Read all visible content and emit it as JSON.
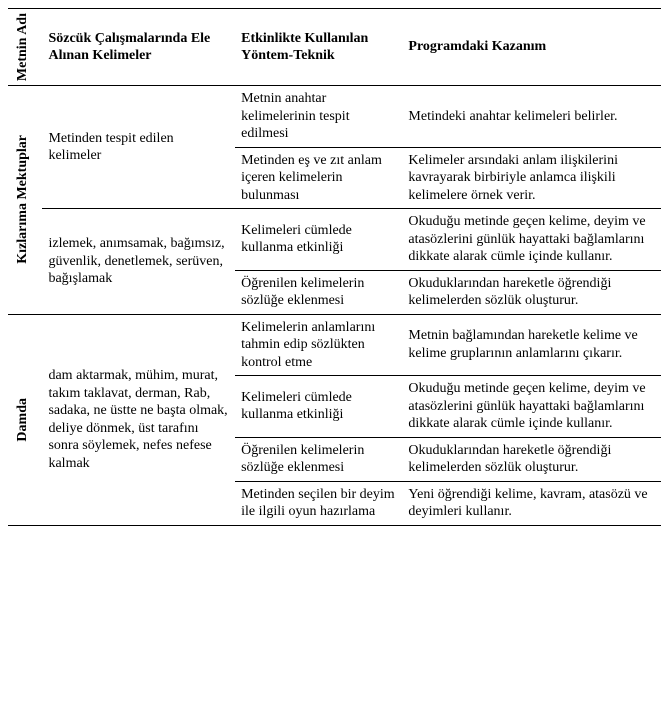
{
  "header": {
    "col1": "Metnin Adı",
    "col2": "Sözcük Çalışmalarında Ele Alınan Kelimeler",
    "col3": "Etkinlikte Kullanılan Yöntem-Teknik",
    "col4": "Programdaki Kazanım"
  },
  "sections": [
    {
      "title": "Kızlarıma Mektuplar",
      "groups": [
        {
          "words": "Metinden tespit edilen kelimeler",
          "rows": [
            {
              "method": "Metnin anahtar kelimelerinin tespit edilmesi",
              "gain": "Metindeki anahtar kelimeleri belirler."
            },
            {
              "method": "Metinden eş ve zıt anlam içeren kelimelerin bulunması",
              "gain": "Kelimeler arsındaki anlam ilişkilerini kavrayarak birbiriyle anlamca ilişkili kelimelere örnek verir."
            }
          ]
        },
        {
          "words": "izlemek, anımsamak, bağımsız, güvenlik, denetlemek, serüven, bağışlamak",
          "rows": [
            {
              "method": "Kelimeleri cümlede kullanma etkinliği",
              "gain": "Okuduğu metinde geçen kelime, deyim ve atasözlerini günlük hayattaki bağlamlarını dikkate alarak cümle içinde kullanır."
            },
            {
              "method": "Öğrenilen kelimelerin sözlüğe eklenmesi",
              "gain": "Okuduklarından hareketle öğrendiği kelimelerden sözlük oluşturur."
            }
          ]
        }
      ]
    },
    {
      "title": "Damda",
      "groups": [
        {
          "words": "dam aktarmak, mühim, murat, takım taklavat, derman, Rab, sadaka, ne üstte ne başta olmak, deliye dönmek, üst tarafını sonra söylemek, nefes nefese kalmak",
          "rows": [
            {
              "method": "Kelimelerin anlamlarını tahmin edip sözlükten kontrol etme",
              "gain": "Metnin bağlamından hareketle kelime ve kelime gruplarının anlamlarını çıkarır."
            },
            {
              "method": "Kelimeleri cümlede kullanma etkinliği",
              "gain": "Okuduğu metinde geçen kelime, deyim ve atasözlerini günlük hayattaki bağlamlarını dikkate alarak cümle içinde kullanır."
            },
            {
              "method": "Öğrenilen kelimelerin sözlüğe eklenmesi",
              "gain": "Okuduklarından hareketle öğrendiği kelimelerden sözlük oluşturur."
            },
            {
              "method": "Metinden seçilen bir deyim ile ilgili oyun hazırlama",
              "gain": "Yeni öğrendiği kelime, kavram, atasözü ve deyimleri kullanır."
            }
          ]
        }
      ]
    }
  ]
}
